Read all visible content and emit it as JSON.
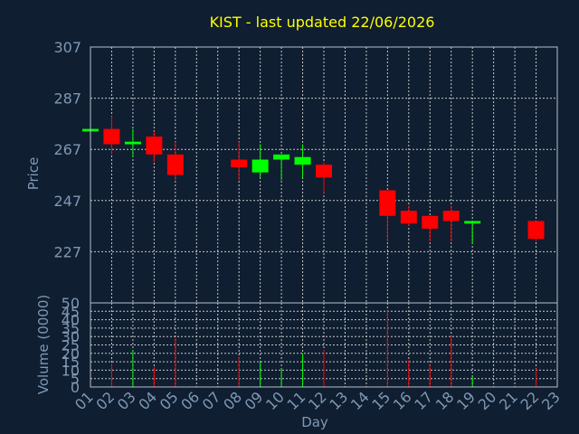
{
  "chart_data": {
    "type": "candlestick",
    "title": "KIST - last updated 22/06/2026",
    "xlabel": "Day",
    "ylabel": "Price",
    "volume_label": "Volume (0000)",
    "colors": {
      "background": "#0f1e30",
      "up": "#00ff00",
      "down": "#ff0000",
      "title": "#ffff00",
      "axis_text": "#7f98b4",
      "grid": "#c8c8c8"
    },
    "grid": true,
    "price_ticks": [
      "307",
      "287",
      "267",
      "247",
      "227"
    ],
    "price_ylim": [
      207,
      307
    ],
    "volume_ticks": [
      "0",
      "5",
      "10",
      "15",
      "20",
      "25",
      "30",
      "35",
      "40",
      "45",
      "50"
    ],
    "volume_ylim": [
      0,
      50
    ],
    "days": [
      "01",
      "02",
      "03",
      "04",
      "05",
      "06",
      "07",
      "08",
      "09",
      "10",
      "11",
      "12",
      "13",
      "14",
      "15",
      "16",
      "17",
      "18",
      "19",
      "20",
      "21",
      "22",
      "23"
    ],
    "candles": [
      {
        "day": "01",
        "open": 274,
        "high": 275,
        "low": 274,
        "close": 275,
        "volume": 0
      },
      {
        "day": "02",
        "open": 275,
        "high": 280,
        "low": 265,
        "close": 269,
        "volume": 14
      },
      {
        "day": "03",
        "open": 269,
        "high": 275,
        "low": 264,
        "close": 270,
        "volume": 22
      },
      {
        "day": "04",
        "open": 272,
        "high": 274,
        "low": 262,
        "close": 265,
        "volume": 12
      },
      {
        "day": "05",
        "open": 265,
        "high": 270,
        "low": 255,
        "close": 257,
        "volume": 29
      },
      {
        "day": "08",
        "open": 263,
        "high": 270,
        "low": 255,
        "close": 260,
        "volume": 18
      },
      {
        "day": "09",
        "open": 258,
        "high": 269,
        "low": 256,
        "close": 263,
        "volume": 15
      },
      {
        "day": "10",
        "open": 263,
        "high": 265,
        "low": 255,
        "close": 265,
        "volume": 11
      },
      {
        "day": "11",
        "open": 261,
        "high": 269,
        "low": 256,
        "close": 264,
        "volume": 20
      },
      {
        "day": "12",
        "open": 261,
        "high": 262,
        "low": 250,
        "close": 256,
        "volume": 22
      },
      {
        "day": "15",
        "open": 251,
        "high": 251,
        "low": 231,
        "close": 241,
        "volume": 46
      },
      {
        "day": "16",
        "open": 243,
        "high": 245,
        "low": 237,
        "close": 238,
        "volume": 16
      },
      {
        "day": "17",
        "open": 241,
        "high": 241,
        "low": 231,
        "close": 236,
        "volume": 13
      },
      {
        "day": "18",
        "open": 243,
        "high": 245,
        "low": 231,
        "close": 239,
        "volume": 31
      },
      {
        "day": "19",
        "open": 238,
        "high": 239,
        "low": 230,
        "close": 239,
        "volume": 7
      },
      {
        "day": "22",
        "open": 239,
        "high": 239,
        "low": 231,
        "close": 232,
        "volume": 11
      }
    ]
  }
}
